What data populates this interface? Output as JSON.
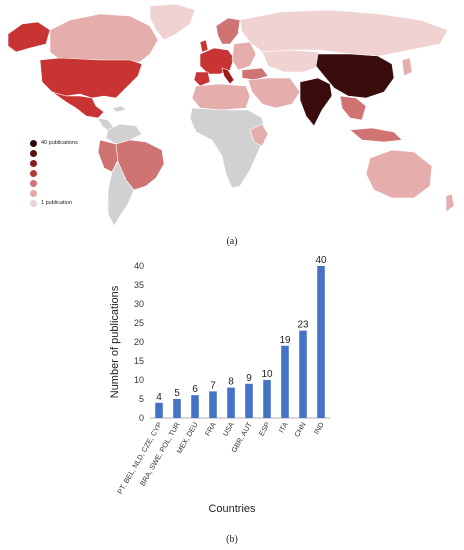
{
  "panel_labels": {
    "a": "(a)",
    "b": "(b)"
  },
  "map": {
    "legend": {
      "colors": [
        "#2b0a0a",
        "#5a1212",
        "#8a1e1e",
        "#b33a3a",
        "#cf7373",
        "#e3a7a7",
        "#f1d2d2"
      ],
      "max_label": "40 publications",
      "min_label": "1 publication"
    },
    "colors": {
      "ocean": "#ffffff",
      "no_data": "#d1d1d1",
      "lightest": "#f1d2d2",
      "light": "#e6adad",
      "medium": "#cf7373",
      "red": "#c83434",
      "dark_red": "#a01818",
      "darkest": "#3a0c0c"
    }
  },
  "chart_data": {
    "type": "bar",
    "categories": [
      "PT, BEL, NLD, CZE, CYP",
      "BRA, SWE, POL, TUR",
      "MEX, DEU",
      "FRA",
      "USA",
      "GBR, AUT",
      "ESP",
      "ITA",
      "CHN",
      "IND"
    ],
    "values": [
      4,
      5,
      6,
      7,
      8,
      9,
      10,
      19,
      23,
      40
    ],
    "title": "",
    "xlabel": "Countries",
    "ylabel": "Number of publications",
    "ylim": [
      0,
      40
    ],
    "yticks": [
      0,
      5,
      10,
      15,
      20,
      25,
      30,
      35,
      40
    ],
    "bar_color": "#4472c4",
    "grid": false
  }
}
